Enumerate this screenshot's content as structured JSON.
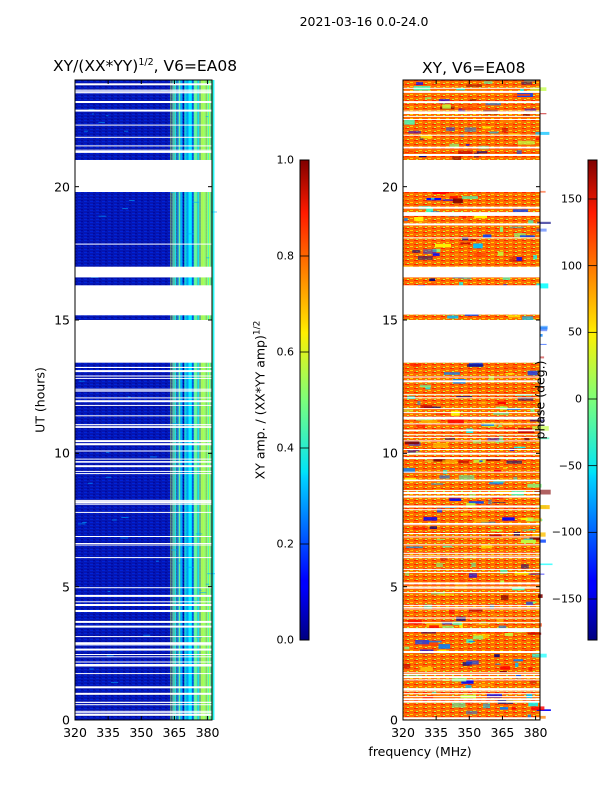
{
  "suptitle": "2021-03-16 0.0-24.0",
  "chart_data": [
    {
      "type": "heatmap",
      "title_prefix": "XY/(XX*YY)",
      "title_sup": "1/2",
      "title_suffix": ", V6=EA08",
      "xlabel": "",
      "ylabel": "UT (hours)",
      "xlim": [
        320,
        382
      ],
      "ylim": [
        0,
        24
      ],
      "xticks": [
        320,
        335,
        350,
        365,
        380
      ],
      "yticks": [
        0,
        5,
        10,
        15,
        20
      ],
      "colormap": "jet",
      "gap_bands_ut": [
        [
          21.0,
          19.8
        ],
        [
          17.0,
          16.6
        ],
        [
          16.3,
          15.2
        ],
        [
          15.0,
          13.4
        ]
      ],
      "bright_channels_mhz": [
        363,
        382
      ],
      "colorbar": {
        "label_main": "XY amp. / (XX*YY amp)",
        "label_sup": "1/2",
        "range": [
          0.0,
          1.0
        ],
        "ticks": [
          "0.0",
          "0.2",
          "0.4",
          "0.6",
          "0.8",
          "1.0"
        ]
      }
    },
    {
      "type": "heatmap",
      "title": "XY, V6=EA08",
      "xlabel": "frequency (MHz)",
      "ylabel": "",
      "xlim": [
        320,
        382
      ],
      "ylim": [
        0,
        24
      ],
      "xticks": [
        320,
        335,
        350,
        365,
        380
      ],
      "yticks": [
        0,
        5,
        10,
        15,
        20
      ],
      "colormap": "jet",
      "gap_bands_ut": [
        [
          21.0,
          19.8
        ],
        [
          17.0,
          16.6
        ],
        [
          16.3,
          15.2
        ],
        [
          15.0,
          13.4
        ]
      ],
      "colorbar": {
        "label": "phase (deg.)",
        "range": [
          -180,
          180
        ],
        "ticks": [
          "150",
          "100",
          "50",
          "0",
          "−50",
          "−100",
          "−150"
        ]
      }
    }
  ]
}
